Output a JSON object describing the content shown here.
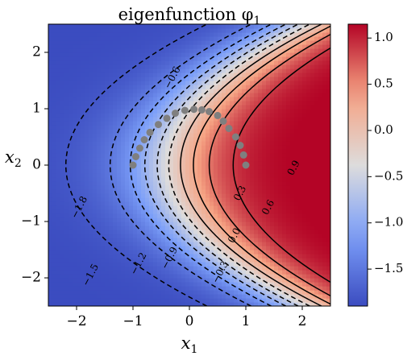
{
  "chart_data": {
    "type": "heatmap",
    "title": "eigenfunction φ",
    "title_subscript": "1",
    "xlabel": "x",
    "xlabel_subscript": "1",
    "ylabel": "x",
    "ylabel_subscript": "2",
    "xlim": [
      -2.5,
      2.5
    ],
    "ylim": [
      -2.5,
      2.5
    ],
    "x_ticks": [
      -2,
      -1,
      0,
      1,
      2
    ],
    "x_tick_labels": [
      "−2",
      "−1",
      "0",
      "1",
      "2"
    ],
    "y_ticks": [
      -2,
      -1,
      0,
      1,
      2
    ],
    "y_tick_labels": [
      "−2",
      "−1",
      "0",
      "1",
      "2"
    ],
    "colormap": "coolwarm",
    "color_range": [
      -1.9,
      1.15
    ],
    "colorbar_ticks": [
      1.0,
      0.5,
      0.0,
      -0.5,
      -1.0,
      -1.5
    ],
    "colorbar_tick_labels": [
      "1.0",
      "0.5",
      "0.0",
      "−0.5",
      "−1.0",
      "−1.5"
    ],
    "contour_levels": [
      -1.8,
      -1.5,
      -1.2,
      -0.9,
      -0.6,
      -0.3,
      0.0,
      0.3,
      0.6,
      0.9
    ],
    "contour_labels": [
      {
        "text": "−1.8",
        "x": -1.95,
        "y": -0.75
      },
      {
        "text": "−1.5",
        "x": -1.75,
        "y": -1.95
      },
      {
        "text": "−1.2",
        "x": -0.9,
        "y": -1.75
      },
      {
        "text": "−0.9",
        "x": -0.35,
        "y": -1.65
      },
      {
        "text": "−0.6",
        "x": -0.3,
        "y": 1.55
      },
      {
        "text": "−0.3",
        "x": 0.55,
        "y": -1.9
      },
      {
        "text": "0.0",
        "x": 0.8,
        "y": -1.25
      },
      {
        "text": "0.3",
        "x": 0.9,
        "y": -0.5
      },
      {
        "text": "0.6",
        "x": 1.4,
        "y": -0.75
      },
      {
        "text": "0.9",
        "x": 1.85,
        "y": -0.05
      }
    ],
    "gray_points": [
      {
        "x": -1.0,
        "y": 0.0
      },
      {
        "x": -0.95,
        "y": 0.15
      },
      {
        "x": -0.88,
        "y": 0.3
      },
      {
        "x": -0.8,
        "y": 0.45
      },
      {
        "x": -0.7,
        "y": 0.58
      },
      {
        "x": -0.55,
        "y": 0.72
      },
      {
        "x": -0.4,
        "y": 0.83
      },
      {
        "x": -0.25,
        "y": 0.92
      },
      {
        "x": -0.08,
        "y": 0.97
      },
      {
        "x": 0.08,
        "y": 0.99
      },
      {
        "x": 0.22,
        "y": 0.98
      },
      {
        "x": 0.35,
        "y": 0.95
      },
      {
        "x": 0.5,
        "y": 0.88
      },
      {
        "x": 0.6,
        "y": 0.78
      },
      {
        "x": 0.7,
        "y": 0.65
      },
      {
        "x": 0.82,
        "y": 0.5
      },
      {
        "x": 0.9,
        "y": 0.35
      },
      {
        "x": 0.96,
        "y": 0.18
      },
      {
        "x": 1.0,
        "y": 0.0
      }
    ]
  }
}
